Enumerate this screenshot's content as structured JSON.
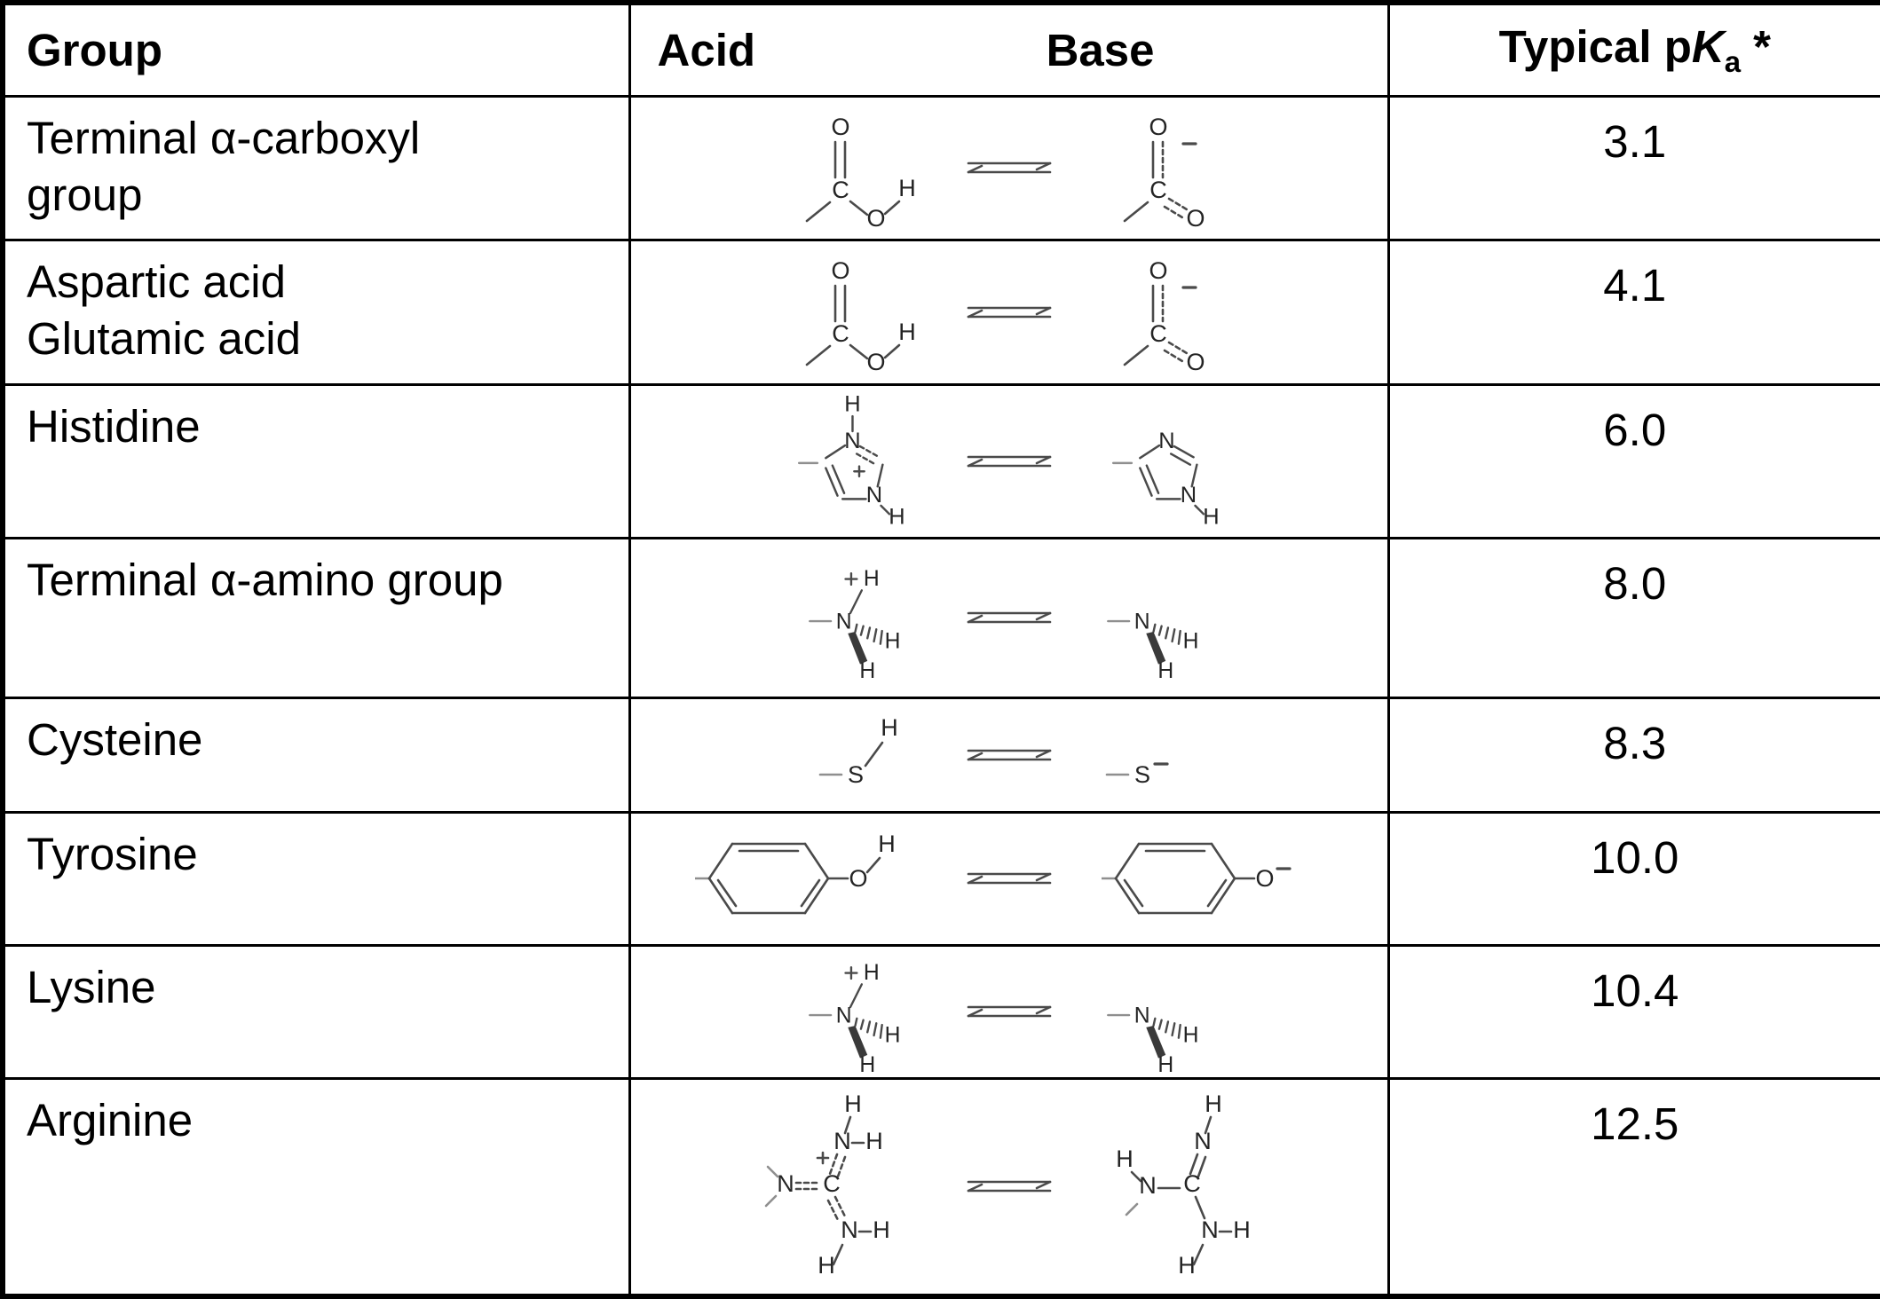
{
  "header": {
    "group": "Group",
    "acid": "Acid",
    "base": "Base",
    "pka": {
      "prefix": "Typical p",
      "symbol": "K",
      "subscript": "a",
      "suffix": "*"
    }
  },
  "rows": [
    {
      "group_lines": [
        "Terminal α-carboxyl",
        "group"
      ],
      "acid_structure": "carboxylic-acid",
      "base_structure": "carboxylate",
      "pka": "3.1"
    },
    {
      "group_lines": [
        "Aspartic acid",
        "Glutamic acid"
      ],
      "acid_structure": "carboxylic-acid",
      "base_structure": "carboxylate",
      "pka": "4.1"
    },
    {
      "group_lines": [
        "Histidine"
      ],
      "acid_structure": "imidazolium",
      "base_structure": "imidazole",
      "pka": "6.0"
    },
    {
      "group_lines": [
        "Terminal α-amino group"
      ],
      "acid_structure": "ammonium",
      "base_structure": "primary-amine",
      "pka": "8.0"
    },
    {
      "group_lines": [
        "Cysteine"
      ],
      "acid_structure": "thiol",
      "base_structure": "thiolate",
      "pka": "8.3"
    },
    {
      "group_lines": [
        "Tyrosine"
      ],
      "acid_structure": "phenol",
      "base_structure": "phenolate",
      "pka": "10.0"
    },
    {
      "group_lines": [
        "Lysine"
      ],
      "acid_structure": "ammonium",
      "base_structure": "primary-amine",
      "pka": "10.4"
    },
    {
      "group_lines": [
        "Arginine"
      ],
      "acid_structure": "guanidinium",
      "base_structure": "guanidine",
      "pka": "12.5"
    }
  ],
  "colors": {
    "border": "#000000",
    "background": "#ffffff",
    "text": "#000000",
    "structure_stroke": "#4a4a4a",
    "structure_atom": "#242424"
  }
}
